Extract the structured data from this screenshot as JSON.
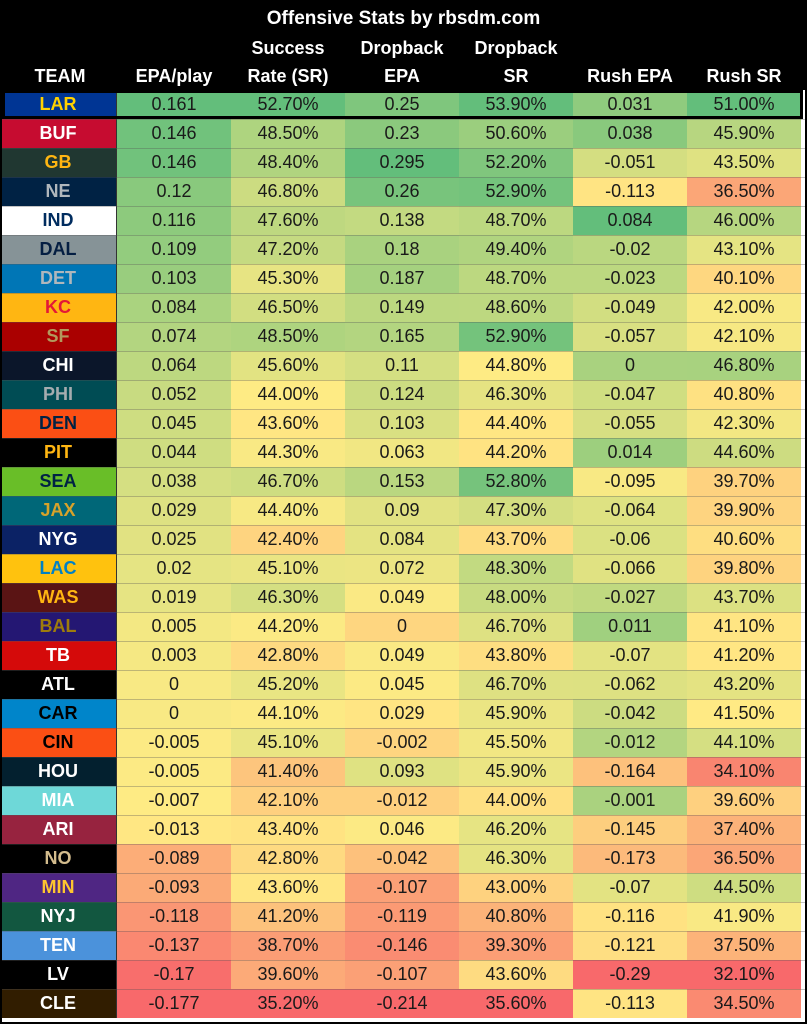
{
  "chart_data": {
    "type": "table",
    "title": "Offensive Stats by rbsdm.com",
    "columns": [
      {
        "line1": "",
        "line2": "TEAM"
      },
      {
        "line1": "",
        "line2": "EPA/play"
      },
      {
        "line1": "Success",
        "line2": "Rate (SR)"
      },
      {
        "line1": "Dropback",
        "line2": "EPA"
      },
      {
        "line1": "Dropback",
        "line2": "SR"
      },
      {
        "line1": "",
        "line2": "Rush EPA"
      },
      {
        "line1": "",
        "line2": "Rush SR"
      }
    ],
    "highlighted_row": 0,
    "rows": [
      {
        "team": "LAR",
        "team_bg": "#003594",
        "team_fg": "#FFD100",
        "values": [
          "0.161",
          "52.70%",
          "0.25",
          "53.90%",
          "0.031",
          "51.00%"
        ]
      },
      {
        "team": "BUF",
        "team_bg": "#C60C30",
        "team_fg": "#FFFFFF",
        "values": [
          "0.146",
          "48.50%",
          "0.23",
          "50.60%",
          "0.038",
          "45.90%"
        ]
      },
      {
        "team": "GB",
        "team_bg": "#203731",
        "team_fg": "#FFB612",
        "values": [
          "0.146",
          "48.40%",
          "0.295",
          "52.20%",
          "-0.051",
          "43.50%"
        ]
      },
      {
        "team": "NE",
        "team_bg": "#002244",
        "team_fg": "#B0B7BC",
        "values": [
          "0.12",
          "46.80%",
          "0.26",
          "52.90%",
          "-0.113",
          "36.50%"
        ]
      },
      {
        "team": "IND",
        "team_bg": "#FFFFFF",
        "team_fg": "#002C5F",
        "values": [
          "0.116",
          "47.60%",
          "0.138",
          "48.70%",
          "0.084",
          "46.00%"
        ]
      },
      {
        "team": "DAL",
        "team_bg": "#869397",
        "team_fg": "#041E42",
        "values": [
          "0.109",
          "47.20%",
          "0.18",
          "49.40%",
          "-0.02",
          "43.10%"
        ]
      },
      {
        "team": "DET",
        "team_bg": "#0076B6",
        "team_fg": "#B0B7BC",
        "values": [
          "0.103",
          "45.30%",
          "0.187",
          "48.70%",
          "-0.023",
          "40.10%"
        ]
      },
      {
        "team": "KC",
        "team_bg": "#FFB612",
        "team_fg": "#E31837",
        "values": [
          "0.084",
          "46.50%",
          "0.149",
          "48.60%",
          "-0.049",
          "42.00%"
        ]
      },
      {
        "team": "SF",
        "team_bg": "#AA0000",
        "team_fg": "#B3995D",
        "values": [
          "0.074",
          "48.50%",
          "0.165",
          "52.90%",
          "-0.057",
          "42.10%"
        ]
      },
      {
        "team": "CHI",
        "team_bg": "#0B162A",
        "team_fg": "#FFFFFF",
        "values": [
          "0.064",
          "45.60%",
          "0.11",
          "44.80%",
          "0",
          "46.80%"
        ]
      },
      {
        "team": "PHI",
        "team_bg": "#004C54",
        "team_fg": "#A5ACAF",
        "values": [
          "0.052",
          "44.00%",
          "0.124",
          "46.30%",
          "-0.047",
          "40.80%"
        ]
      },
      {
        "team": "DEN",
        "team_bg": "#FB4F14",
        "team_fg": "#002244",
        "values": [
          "0.045",
          "43.60%",
          "0.103",
          "44.40%",
          "-0.055",
          "42.30%"
        ]
      },
      {
        "team": "PIT",
        "team_bg": "#000000",
        "team_fg": "#FFB612",
        "values": [
          "0.044",
          "44.30%",
          "0.063",
          "44.20%",
          "0.014",
          "44.60%"
        ]
      },
      {
        "team": "SEA",
        "team_bg": "#69BE28",
        "team_fg": "#002244",
        "values": [
          "0.038",
          "46.70%",
          "0.153",
          "52.80%",
          "-0.095",
          "39.70%"
        ]
      },
      {
        "team": "JAX",
        "team_bg": "#006778",
        "team_fg": "#D7A22A",
        "values": [
          "0.029",
          "44.40%",
          "0.09",
          "47.30%",
          "-0.064",
          "39.90%"
        ]
      },
      {
        "team": "NYG",
        "team_bg": "#0B2265",
        "team_fg": "#FFFFFF",
        "values": [
          "0.025",
          "42.40%",
          "0.084",
          "43.70%",
          "-0.06",
          "40.60%"
        ]
      },
      {
        "team": "LAC",
        "team_bg": "#FFC20E",
        "team_fg": "#0080C6",
        "values": [
          "0.02",
          "45.10%",
          "0.072",
          "48.30%",
          "-0.066",
          "39.80%"
        ]
      },
      {
        "team": "WAS",
        "team_bg": "#5A1414",
        "team_fg": "#FFB612",
        "values": [
          "0.019",
          "46.30%",
          "0.049",
          "48.00%",
          "-0.027",
          "43.70%"
        ]
      },
      {
        "team": "BAL",
        "team_bg": "#241773",
        "team_fg": "#9E7C0C",
        "values": [
          "0.005",
          "44.20%",
          "0",
          "46.70%",
          "0.011",
          "41.10%"
        ]
      },
      {
        "team": "TB",
        "team_bg": "#D50A0A",
        "team_fg": "#FFFFFF",
        "values": [
          "0.003",
          "42.80%",
          "0.049",
          "43.80%",
          "-0.07",
          "41.20%"
        ]
      },
      {
        "team": "ATL",
        "team_bg": "#000000",
        "team_fg": "#FFFFFF",
        "values": [
          "0",
          "45.20%",
          "0.045",
          "46.70%",
          "-0.062",
          "43.20%"
        ]
      },
      {
        "team": "CAR",
        "team_bg": "#0085CA",
        "team_fg": "#000000",
        "values": [
          "0",
          "44.10%",
          "0.029",
          "45.90%",
          "-0.042",
          "41.50%"
        ]
      },
      {
        "team": "CIN",
        "team_bg": "#FB4F14",
        "team_fg": "#000000",
        "values": [
          "-0.005",
          "45.10%",
          "-0.002",
          "45.50%",
          "-0.012",
          "44.10%"
        ]
      },
      {
        "team": "HOU",
        "team_bg": "#03202F",
        "team_fg": "#FFFFFF",
        "values": [
          "-0.005",
          "41.40%",
          "0.093",
          "45.90%",
          "-0.164",
          "34.10%"
        ]
      },
      {
        "team": "MIA",
        "team_bg": "#6ED8D8",
        "team_fg": "#FFFFFF",
        "values": [
          "-0.007",
          "42.10%",
          "-0.012",
          "44.00%",
          "-0.001",
          "39.60%"
        ]
      },
      {
        "team": "ARI",
        "team_bg": "#97233F",
        "team_fg": "#FFFFFF",
        "values": [
          "-0.013",
          "43.40%",
          "0.046",
          "46.20%",
          "-0.145",
          "37.40%"
        ]
      },
      {
        "team": "NO",
        "team_bg": "#000000",
        "team_fg": "#D3BC8D",
        "values": [
          "-0.089",
          "42.80%",
          "-0.042",
          "46.30%",
          "-0.173",
          "36.50%"
        ]
      },
      {
        "team": "MIN",
        "team_bg": "#4F2683",
        "team_fg": "#FFC62F",
        "values": [
          "-0.093",
          "43.60%",
          "-0.107",
          "43.00%",
          "-0.07",
          "44.50%"
        ]
      },
      {
        "team": "NYJ",
        "team_bg": "#125740",
        "team_fg": "#FFFFFF",
        "values": [
          "-0.118",
          "41.20%",
          "-0.119",
          "40.80%",
          "-0.116",
          "41.90%"
        ]
      },
      {
        "team": "TEN",
        "team_bg": "#4B92DB",
        "team_fg": "#FFFFFF",
        "values": [
          "-0.137",
          "38.70%",
          "-0.146",
          "39.30%",
          "-0.121",
          "37.50%"
        ]
      },
      {
        "team": "LV",
        "team_bg": "#000000",
        "team_fg": "#FFFFFF",
        "values": [
          "-0.17",
          "39.60%",
          "-0.107",
          "43.60%",
          "-0.29",
          "32.10%"
        ]
      },
      {
        "team": "CLE",
        "team_bg": "#311D00",
        "team_fg": "#FFFFFF",
        "values": [
          "-0.177",
          "35.20%",
          "-0.214",
          "35.60%",
          "-0.113",
          "34.50%"
        ]
      }
    ],
    "color_scale": {
      "low": "#F8696B",
      "mid": "#FFEB84",
      "high": "#63BE7B"
    }
  }
}
